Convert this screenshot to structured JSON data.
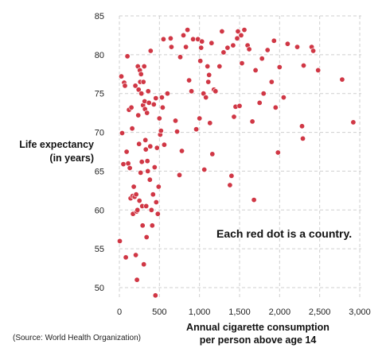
{
  "chart_data": {
    "type": "scatter",
    "ylabel": [
      "Life expectancy",
      "(in years)"
    ],
    "xlabel": [
      "Annual cigarette consumption",
      "per person above age 14"
    ],
    "annotation": "Each red dot is a country.",
    "source": "(Source: World Health Organization)",
    "xlim": [
      0,
      3000
    ],
    "ylim": [
      48,
      85
    ],
    "x_ticks": [
      {
        "value": 0,
        "label": "0"
      },
      {
        "value": 500,
        "label": "500"
      },
      {
        "value": 1000,
        "label": "1,000"
      },
      {
        "value": 1500,
        "label": "1,500"
      },
      {
        "value": 2000,
        "label": "2,000"
      },
      {
        "value": 2500,
        "label": "2,500"
      },
      {
        "value": 3000,
        "label": "3,000"
      }
    ],
    "y_ticks": [
      {
        "value": 50,
        "label": "50"
      },
      {
        "value": 55,
        "label": "55"
      },
      {
        "value": 60,
        "label": "60"
      },
      {
        "value": 65,
        "label": "65"
      },
      {
        "value": 70,
        "label": "70"
      },
      {
        "value": 75,
        "label": "75"
      },
      {
        "value": 80,
        "label": "80"
      },
      {
        "value": 85,
        "label": "85"
      }
    ],
    "grid": true,
    "dot_color": "#d03745",
    "points": [
      [
        5,
        56
      ],
      [
        25,
        77.2
      ],
      [
        35,
        69.9
      ],
      [
        50,
        65.9
      ],
      [
        60,
        76.4
      ],
      [
        70,
        76
      ],
      [
        80,
        53.9
      ],
      [
        90,
        67.5
      ],
      [
        100,
        79.8
      ],
      [
        110,
        66
      ],
      [
        120,
        72.9
      ],
      [
        130,
        65.4
      ],
      [
        140,
        61.5
      ],
      [
        150,
        73.2
      ],
      [
        160,
        70.5
      ],
      [
        165,
        61.8
      ],
      [
        170,
        59.5
      ],
      [
        180,
        63
      ],
      [
        190,
        61.7
      ],
      [
        200,
        76
      ],
      [
        205,
        54.2
      ],
      [
        210,
        62
      ],
      [
        215,
        59.8
      ],
      [
        220,
        51
      ],
      [
        225,
        60
      ],
      [
        230,
        78.5
      ],
      [
        235,
        72.2
      ],
      [
        240,
        75.5
      ],
      [
        245,
        68.5
      ],
      [
        250,
        61.2
      ],
      [
        255,
        78
      ],
      [
        260,
        76.5
      ],
      [
        265,
        64.8
      ],
      [
        270,
        77.5
      ],
      [
        275,
        75
      ],
      [
        280,
        66.2
      ],
      [
        285,
        60.5
      ],
      [
        290,
        58
      ],
      [
        295,
        73.5
      ],
      [
        300,
        76.5
      ],
      [
        305,
        53
      ],
      [
        310,
        78.5
      ],
      [
        315,
        74
      ],
      [
        320,
        73
      ],
      [
        325,
        69
      ],
      [
        330,
        67.8
      ],
      [
        335,
        60.5
      ],
      [
        340,
        56.5
      ],
      [
        345,
        72.5
      ],
      [
        350,
        66.3
      ],
      [
        355,
        65
      ],
      [
        360,
        75.3
      ],
      [
        370,
        73.8
      ],
      [
        380,
        63.9
      ],
      [
        385,
        68.2
      ],
      [
        390,
        80.5
      ],
      [
        400,
        60
      ],
      [
        410,
        58
      ],
      [
        420,
        62
      ],
      [
        430,
        73.6
      ],
      [
        440,
        65.5
      ],
      [
        450,
        49
      ],
      [
        455,
        74.4
      ],
      [
        460,
        61
      ],
      [
        470,
        68
      ],
      [
        480,
        59.5
      ],
      [
        490,
        63
      ],
      [
        500,
        71.8
      ],
      [
        510,
        69.7
      ],
      [
        520,
        70.2
      ],
      [
        530,
        74.5
      ],
      [
        540,
        73.2
      ],
      [
        550,
        82
      ],
      [
        560,
        68.4
      ],
      [
        600,
        75
      ],
      [
        640,
        82.1
      ],
      [
        650,
        81
      ],
      [
        700,
        71.5
      ],
      [
        720,
        70.1
      ],
      [
        750,
        64.5
      ],
      [
        760,
        79.7
      ],
      [
        780,
        67.6
      ],
      [
        800,
        82.5
      ],
      [
        830,
        81
      ],
      [
        850,
        83.2
      ],
      [
        870,
        76.7
      ],
      [
        900,
        75.3
      ],
      [
        920,
        82
      ],
      [
        960,
        70.4
      ],
      [
        980,
        82
      ],
      [
        1000,
        71.8
      ],
      [
        1010,
        79.2
      ],
      [
        1020,
        80.9
      ],
      [
        1030,
        81.7
      ],
      [
        1050,
        75
      ],
      [
        1060,
        65.2
      ],
      [
        1080,
        74.5
      ],
      [
        1100,
        78.5
      ],
      [
        1110,
        76.5
      ],
      [
        1120,
        77.4
      ],
      [
        1130,
        71.2
      ],
      [
        1150,
        81.5
      ],
      [
        1160,
        67.2
      ],
      [
        1180,
        75.5
      ],
      [
        1200,
        75.3
      ],
      [
        1250,
        78.5
      ],
      [
        1280,
        83
      ],
      [
        1300,
        80.3
      ],
      [
        1350,
        80.9
      ],
      [
        1380,
        63.2
      ],
      [
        1400,
        64.4
      ],
      [
        1420,
        81.2
      ],
      [
        1430,
        72
      ],
      [
        1450,
        73.3
      ],
      [
        1470,
        82.1
      ],
      [
        1480,
        83
      ],
      [
        1500,
        73.4
      ],
      [
        1520,
        82.5
      ],
      [
        1530,
        78.9
      ],
      [
        1560,
        83.2
      ],
      [
        1600,
        81.2
      ],
      [
        1620,
        80.7
      ],
      [
        1660,
        71.4
      ],
      [
        1680,
        61.3
      ],
      [
        1700,
        78
      ],
      [
        1750,
        73.8
      ],
      [
        1780,
        79.5
      ],
      [
        1800,
        75
      ],
      [
        1850,
        80.6
      ],
      [
        1900,
        76.5
      ],
      [
        1930,
        81.8
      ],
      [
        1950,
        73.2
      ],
      [
        1980,
        67.4
      ],
      [
        2000,
        78.4
      ],
      [
        2050,
        74.5
      ],
      [
        2100,
        81.4
      ],
      [
        2220,
        81
      ],
      [
        2280,
        70.8
      ],
      [
        2290,
        69.2
      ],
      [
        2300,
        78.6
      ],
      [
        2400,
        81
      ],
      [
        2420,
        80.5
      ],
      [
        2480,
        78
      ],
      [
        2780,
        76.8
      ],
      [
        2920,
        71.3
      ]
    ]
  }
}
